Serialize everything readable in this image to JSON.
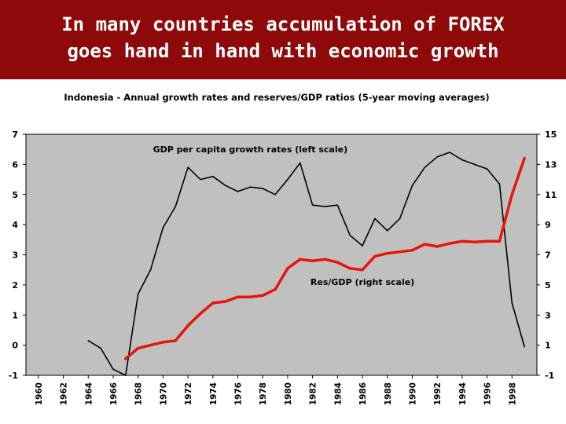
{
  "slide": {
    "title_line1": "In many countries accumulation of FOREX",
    "title_line2": "goes hand in hand with economic growth"
  },
  "colors": {
    "background": "#8e0a0a",
    "plot_area": "#c0c0c0",
    "gdp_series": "#000000",
    "res_series": "#e8140c"
  },
  "chart_data": {
    "type": "line",
    "title": "Indonesia - Annual growth rates and reserves/GDP ratios (5-year moving averages)",
    "x_ticks": [
      "1960",
      "1962",
      "1964",
      "1966",
      "1968",
      "1970",
      "1972",
      "1974",
      "1976",
      "1978",
      "1980",
      "1982",
      "1984",
      "1986",
      "1988",
      "1990",
      "1992",
      "1994",
      "1996",
      "1998"
    ],
    "xlim": [
      1959,
      2000
    ],
    "y_left": {
      "lim": [
        -1,
        7
      ],
      "ticks": [
        "-1",
        "0",
        "1",
        "2",
        "3",
        "4",
        "5",
        "6",
        "7"
      ]
    },
    "y_right": {
      "lim": [
        -1,
        15
      ],
      "ticks": [
        "-1",
        "1",
        "3",
        "5",
        "7",
        "9",
        "11",
        "13",
        "15"
      ]
    },
    "grid": false,
    "series": [
      {
        "name": "GDP per capita growth rates (left scale)",
        "axis": "left",
        "x": [
          1964,
          1965,
          1966,
          1967,
          1968,
          1969,
          1970,
          1971,
          1972,
          1973,
          1974,
          1975,
          1976,
          1977,
          1978,
          1979,
          1980,
          1981,
          1982,
          1983,
          1984,
          1985,
          1986,
          1987,
          1988,
          1989,
          1990,
          1991,
          1992,
          1993,
          1994,
          1995,
          1996,
          1997,
          1998,
          1999
        ],
        "values": [
          0.15,
          -0.1,
          -0.8,
          -1.0,
          1.7,
          2.5,
          3.9,
          4.6,
          5.9,
          5.5,
          5.6,
          5.3,
          5.1,
          5.25,
          5.2,
          5.0,
          5.5,
          6.05,
          4.65,
          4.6,
          4.65,
          3.65,
          3.3,
          4.2,
          3.8,
          4.2,
          5.3,
          5.9,
          6.25,
          6.4,
          6.15,
          6.0,
          5.85,
          5.35,
          1.4,
          -0.05
        ]
      },
      {
        "name": "Res/GDP (right scale)",
        "axis": "right",
        "x": [
          1967,
          1968,
          1969,
          1970,
          1971,
          1972,
          1973,
          1974,
          1975,
          1976,
          1977,
          1978,
          1979,
          1980,
          1981,
          1982,
          1983,
          1984,
          1985,
          1986,
          1987,
          1988,
          1989,
          1990,
          1991,
          1992,
          1993,
          1994,
          1995,
          1996,
          1997,
          1998,
          1999
        ],
        "values": [
          0.1,
          0.8,
          1.0,
          1.2,
          1.3,
          2.3,
          3.1,
          3.8,
          3.9,
          4.2,
          4.2,
          4.3,
          4.7,
          6.1,
          6.7,
          6.6,
          6.7,
          6.5,
          6.1,
          6.0,
          6.9,
          7.1,
          7.2,
          7.3,
          7.7,
          7.55,
          7.75,
          7.9,
          7.85,
          7.9,
          7.9,
          11.0,
          13.4
        ]
      }
    ],
    "annotations": [
      {
        "text": "GDP per capita growth rates (left scale)",
        "x": 1977,
        "y": 6.4,
        "axis": "left"
      },
      {
        "text": "Res/GDP (right scale)",
        "x": 1986,
        "y": 5.0,
        "axis": "right"
      }
    ]
  }
}
